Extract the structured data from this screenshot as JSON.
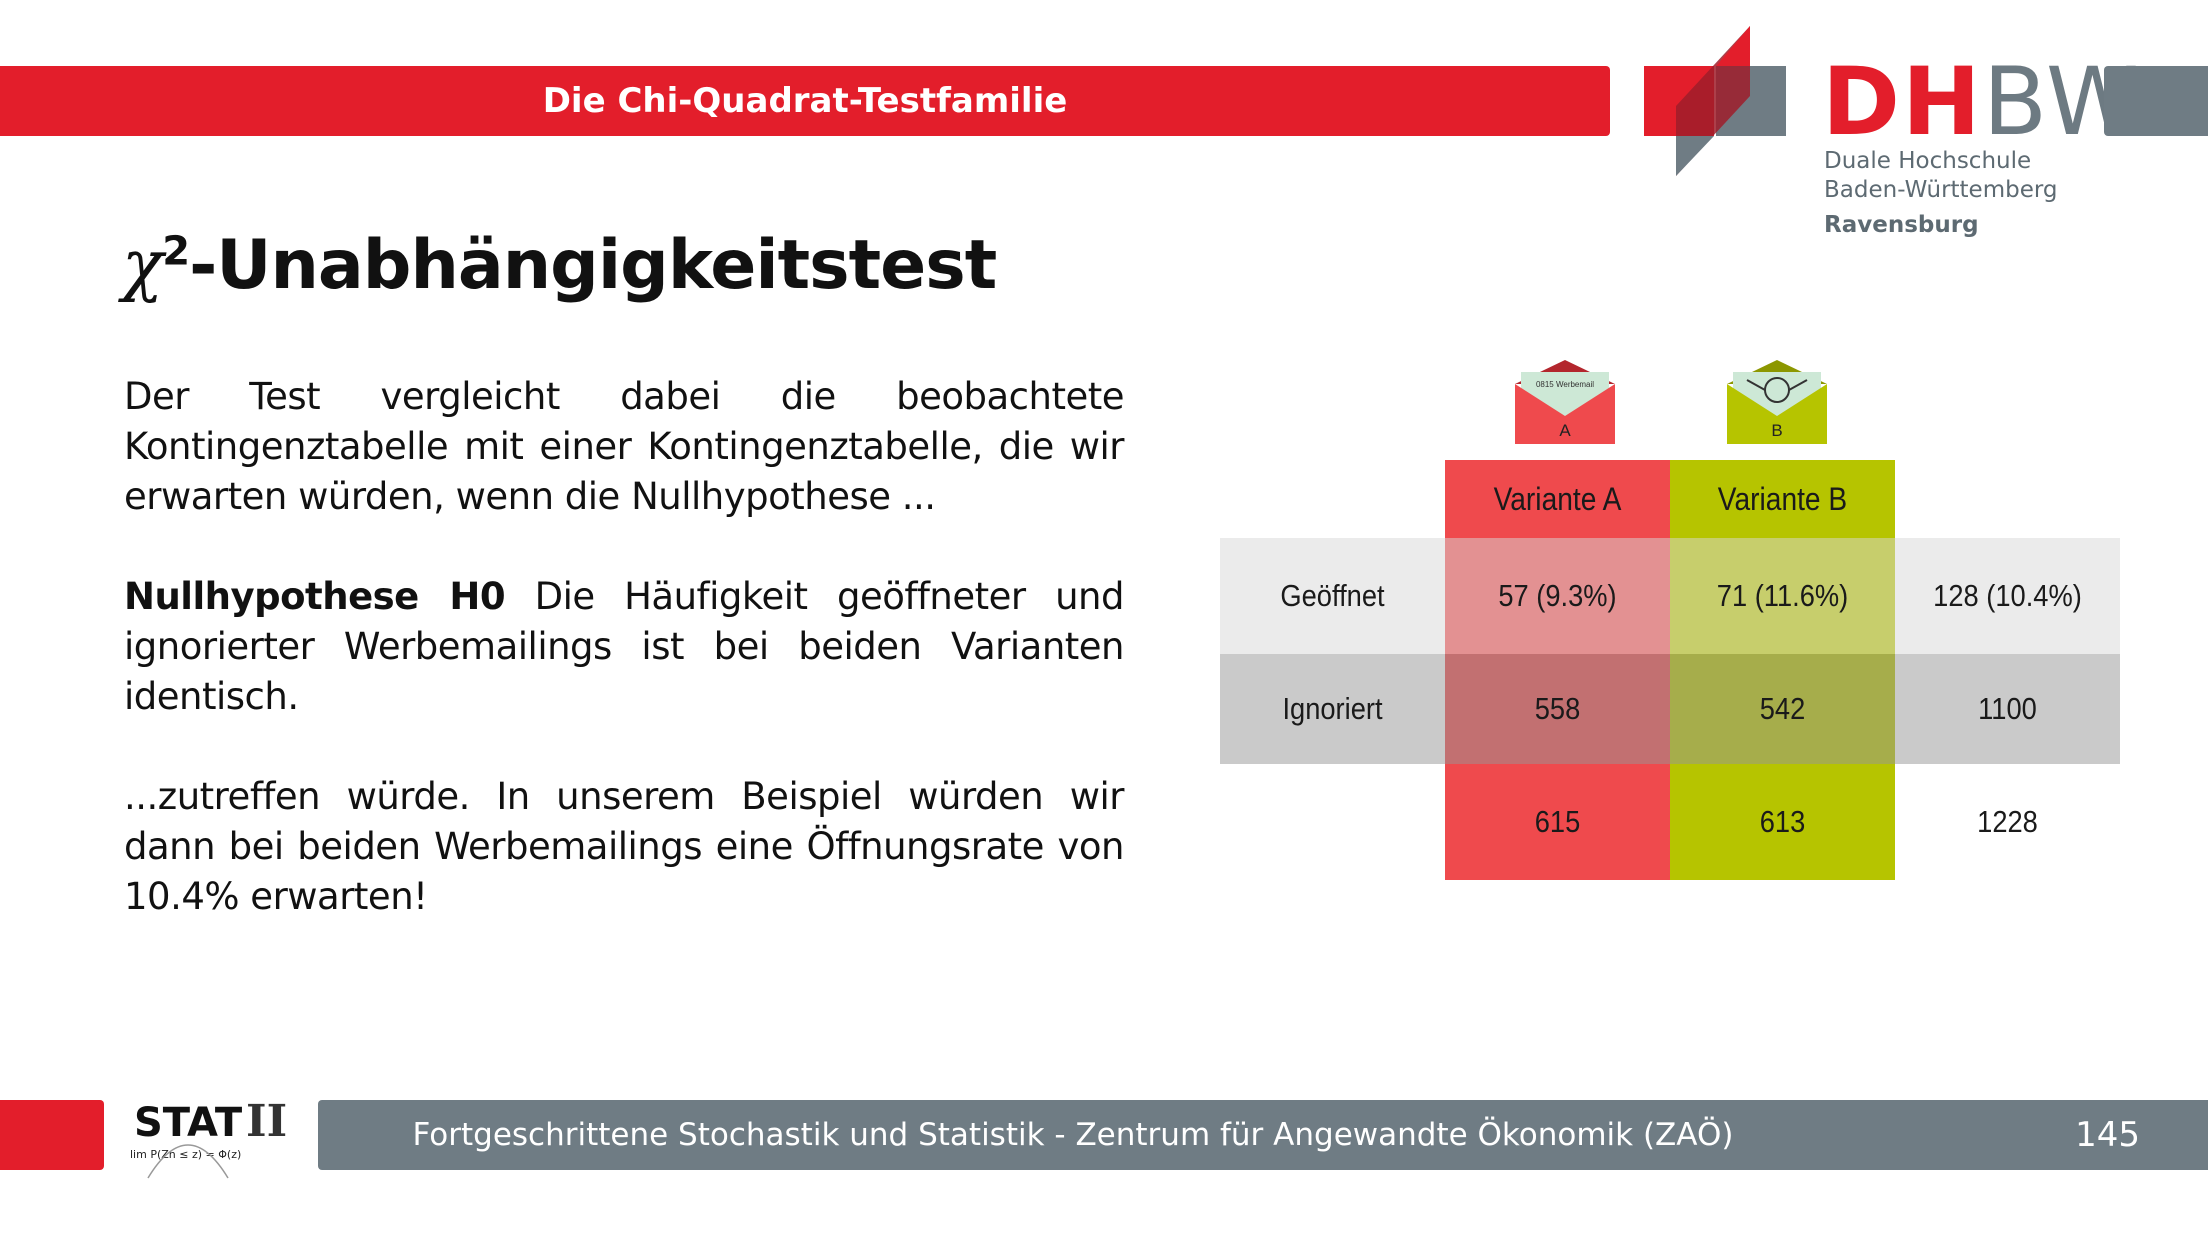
{
  "header": {
    "title": "Die Chi-Quadrat-Testfamilie"
  },
  "logo": {
    "name_red": "DH",
    "name_gray": "BW",
    "line1": "Duale Hochschule",
    "line2": "Baden-Württemberg",
    "line3": "Ravensburg"
  },
  "slide": {
    "title_symbol": "χ",
    "title_superscript": "2",
    "title_rest": "-Unabhängigkeitstest",
    "para1": "Der Test vergleicht dabei die beobachtete Kontingenztabelle mit einer Kontingenztabelle, die wir erwarten würden, wenn die Nullhypothese ...",
    "para2_bold": "Nullhypothese H0",
    "para2_rest": " Die Häufigkeit geöffneter und ignorierter Werbemailings ist bei beiden Varianten identisch.",
    "para3": "...zutreffen würde. In unserem Beispiel würden wir dann bei beiden Werbemailings eine Öffnungsrate von 10.4% erwarten!"
  },
  "table": {
    "envelope_a_paper": "0815 Werbemail",
    "envelope_a_label": "A",
    "envelope_b_label": "B",
    "col_headers": [
      "Variante A",
      "Variante B"
    ],
    "rows": [
      {
        "label": "Geöffnet",
        "a": "57 (9.3%)",
        "b": "71 (11.6%)",
        "total": "128 (10.4%)"
      },
      {
        "label": "Ignoriert",
        "a": "558",
        "b": "542",
        "total": "1100"
      },
      {
        "label": "",
        "a": "615",
        "b": "613",
        "total": "1228"
      }
    ],
    "colors": {
      "variant_a": "#ef4a4d",
      "variant_b": "#b6c400"
    }
  },
  "footer": {
    "stat_logo_text": "STAT",
    "stat_logo_roman": "II",
    "stat_logo_formula": "lim P(Zn ≤ z) = Φ(z)",
    "text": "Fortgeschrittene Stochastik und Statistik - Zentrum für Angewandte Ökonomik (ZAÖ)",
    "page_number": "145"
  },
  "colors": {
    "brand_red": "#e31e2b",
    "brand_gray": "#6f7c84"
  }
}
